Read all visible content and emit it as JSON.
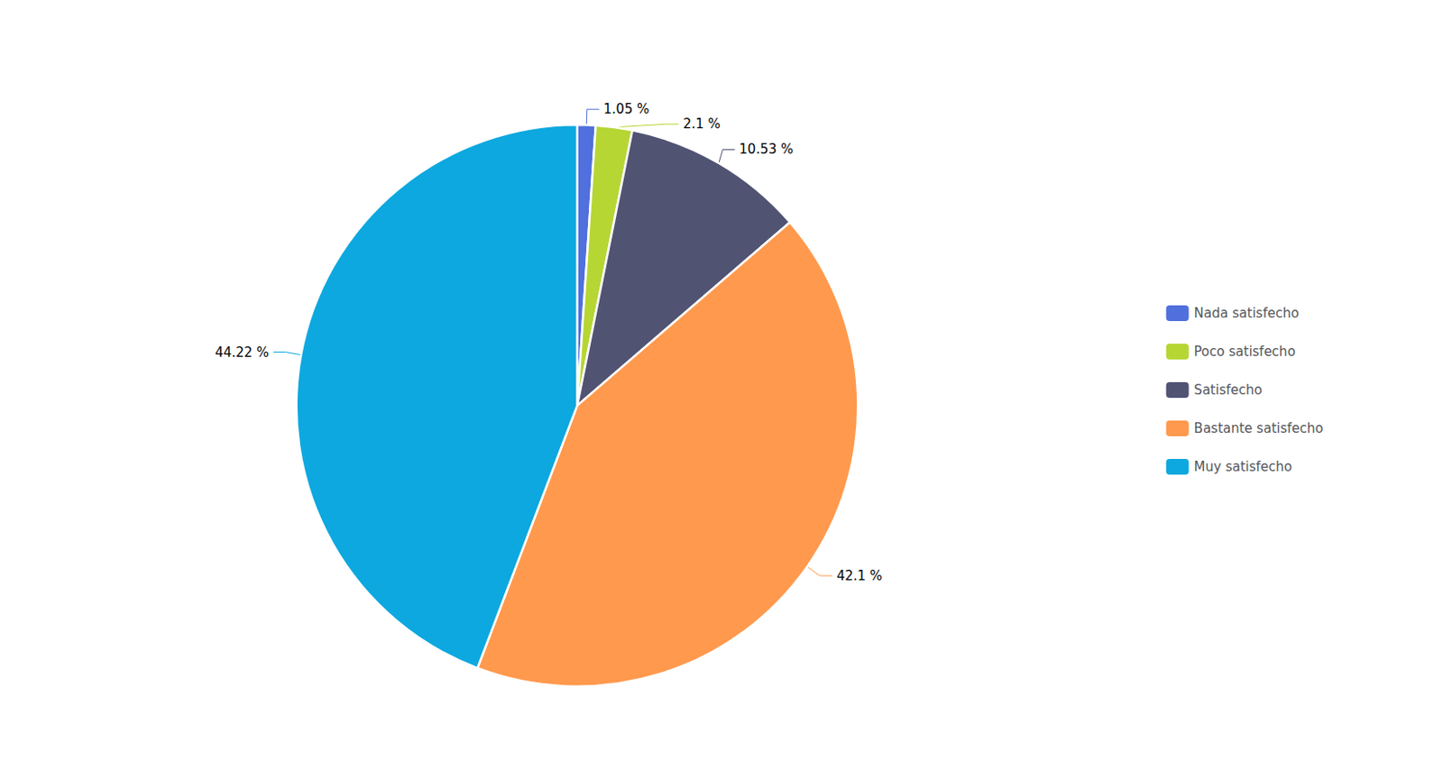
{
  "chart_data": {
    "type": "pie",
    "categories": [
      "Nada satisfecho",
      "Poco satisfecho",
      "Satisfecho",
      "Bastante satisfecho",
      "Muy satisfecho"
    ],
    "values": [
      1.05,
      2.1,
      10.53,
      42.1,
      44.22
    ],
    "value_labels": [
      "1.05 %",
      "2.1 %",
      "10.53 %",
      "42.1 %",
      "44.22 %"
    ],
    "data_labels": true,
    "legend": "right"
  }
}
